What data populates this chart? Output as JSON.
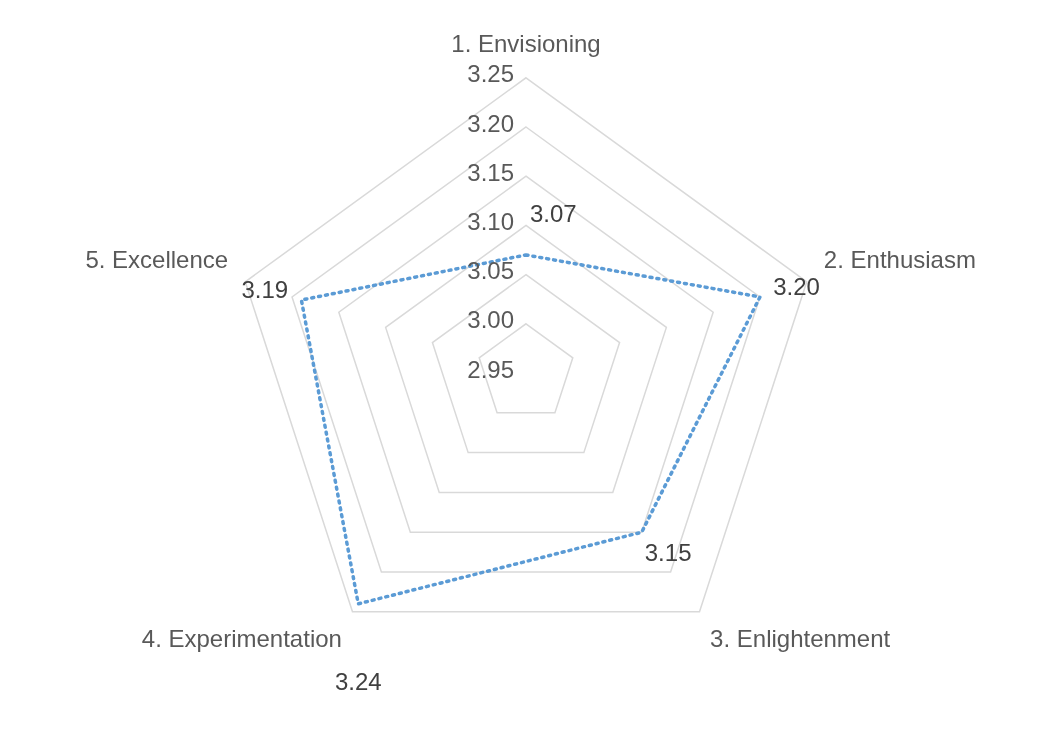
{
  "chart_data": {
    "type": "radar",
    "categories": [
      "1. Envisioning",
      "2. Enthusiasm",
      "3. Enlightenment",
      "4. Experimentation",
      "5. Excellence"
    ],
    "series": [
      {
        "color": "#5b9bd5",
        "values": [
          3.07,
          3.2,
          3.15,
          3.24,
          3.19
        ],
        "value_labels": [
          "3.07",
          "3.20",
          "3.15",
          "3.24",
          "3.19"
        ]
      }
    ],
    "ylim": [
      2.95,
      3.25
    ],
    "yticks": [
      2.95,
      {
        "value": 3.0,
        "label": "3.00"
      },
      3.05,
      {
        "value": 3.1,
        "label": "3.10"
      },
      3.15,
      {
        "value": 3.2,
        "label": "3.20"
      },
      3.25
    ],
    "line_style": "dotted",
    "marker": "none",
    "legend": false,
    "grid": true
  }
}
